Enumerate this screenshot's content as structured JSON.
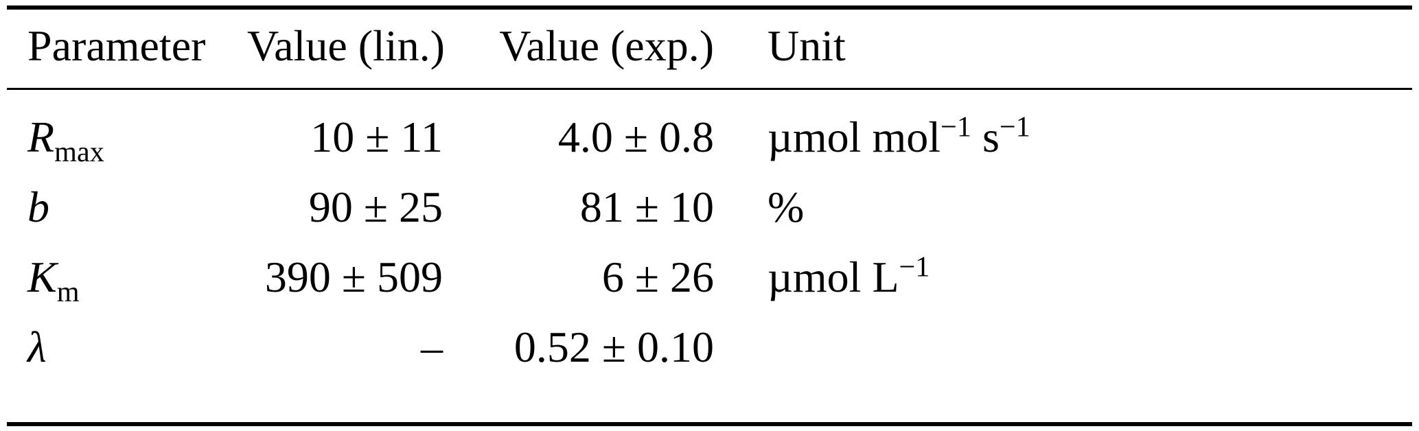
{
  "colors": {
    "background": "#ffffff",
    "text": "#000000",
    "rule": "#000000"
  },
  "table": {
    "headers": {
      "param": "Parameter",
      "value_lin": "Value (lin.)",
      "value_exp": "Value (exp.)",
      "unit": "Unit"
    },
    "rows": [
      {
        "param": {
          "base": "R",
          "sub": "max"
        },
        "value_lin": "10 ± 11",
        "value_exp": "4.0 ± 0.8",
        "unit": {
          "t1": "µmol mol",
          "s1": "−1",
          "t2": " s",
          "s2": "−1"
        }
      },
      {
        "param": {
          "base": "b",
          "sub": ""
        },
        "value_lin": "90 ± 25",
        "value_exp": "81 ± 10",
        "unit": {
          "t1": "%",
          "s1": "",
          "t2": "",
          "s2": ""
        }
      },
      {
        "param": {
          "base": "K",
          "sub": "m"
        },
        "value_lin": "390 ± 509",
        "value_exp": "6 ± 26",
        "unit": {
          "t1": "µmol L",
          "s1": "−1",
          "t2": "",
          "s2": ""
        }
      },
      {
        "param": {
          "base": "λ",
          "sub": ""
        },
        "value_lin": "–",
        "value_exp": "0.52 ± 0.10",
        "unit": {
          "t1": "",
          "s1": "",
          "t2": "",
          "s2": ""
        }
      }
    ]
  }
}
